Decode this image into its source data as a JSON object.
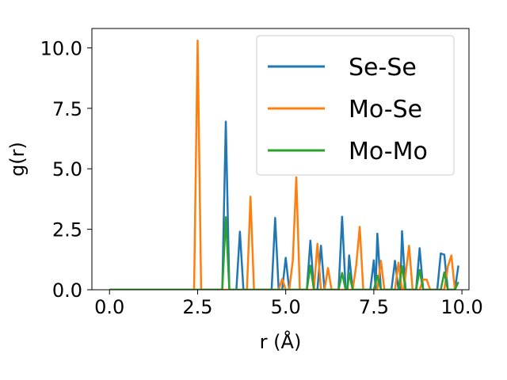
{
  "chart_data": {
    "type": "line",
    "title": "",
    "xlabel": "r (Å)",
    "ylabel": "g(r)",
    "xlim": [
      -0.5,
      10.2
    ],
    "ylim": [
      0,
      10.8
    ],
    "xticks": [
      0.0,
      2.5,
      5.0,
      7.5,
      10.0
    ],
    "yticks": [
      0.0,
      2.5,
      5.0,
      7.5,
      10.0
    ],
    "xtick_labels": [
      "0.0",
      "2.5",
      "5.0",
      "7.5",
      "10.0"
    ],
    "ytick_labels": [
      "0.0",
      "2.5",
      "5.0",
      "7.5",
      "10.0"
    ],
    "grid": false,
    "legend_position": "top-right",
    "series": [
      {
        "name": "Se-Se",
        "color": "#1f77b4",
        "points": [
          [
            0.0,
            0
          ],
          [
            3.2,
            0
          ],
          [
            3.3,
            6.95
          ],
          [
            3.4,
            0
          ],
          [
            3.6,
            0
          ],
          [
            3.7,
            2.4
          ],
          [
            3.8,
            0
          ],
          [
            4.6,
            0
          ],
          [
            4.7,
            2.97
          ],
          [
            4.8,
            0
          ],
          [
            4.9,
            0
          ],
          [
            5.0,
            1.32
          ],
          [
            5.1,
            0
          ],
          [
            5.6,
            0
          ],
          [
            5.7,
            2.03
          ],
          [
            5.8,
            0
          ],
          [
            5.9,
            0
          ],
          [
            6.0,
            1.82
          ],
          [
            6.1,
            0
          ],
          [
            6.5,
            0
          ],
          [
            6.6,
            3.02
          ],
          [
            6.7,
            0
          ],
          [
            6.75,
            0
          ],
          [
            6.8,
            1.42
          ],
          [
            6.9,
            0
          ],
          [
            7.4,
            0
          ],
          [
            7.5,
            1.22
          ],
          [
            7.55,
            0
          ],
          [
            7.6,
            2.32
          ],
          [
            7.7,
            0
          ],
          [
            8.0,
            0
          ],
          [
            8.1,
            1.2
          ],
          [
            8.2,
            0
          ],
          [
            8.25,
            0
          ],
          [
            8.3,
            2.42
          ],
          [
            8.4,
            0
          ],
          [
            8.7,
            0
          ],
          [
            8.8,
            1.72
          ],
          [
            8.9,
            0
          ],
          [
            9.3,
            0
          ],
          [
            9.4,
            1.5
          ],
          [
            9.5,
            1.45
          ],
          [
            9.6,
            0
          ],
          [
            9.8,
            0
          ],
          [
            9.9,
            1.0
          ]
        ]
      },
      {
        "name": "Mo-Se",
        "color": "#ff7f0e",
        "points": [
          [
            0.0,
            0
          ],
          [
            2.4,
            0
          ],
          [
            2.5,
            10.3
          ],
          [
            2.6,
            0
          ],
          [
            3.9,
            0
          ],
          [
            4.0,
            3.85
          ],
          [
            4.1,
            0
          ],
          [
            4.8,
            0
          ],
          [
            4.9,
            0.45
          ],
          [
            5.0,
            0
          ],
          [
            5.1,
            0
          ],
          [
            5.2,
            1.2
          ],
          [
            5.3,
            4.65
          ],
          [
            5.4,
            0
          ],
          [
            5.8,
            0
          ],
          [
            5.9,
            1.9
          ],
          [
            6.0,
            0
          ],
          [
            6.1,
            0
          ],
          [
            6.2,
            0.9
          ],
          [
            6.3,
            0
          ],
          [
            6.9,
            0
          ],
          [
            7.0,
            1.0
          ],
          [
            7.1,
            2.6
          ],
          [
            7.2,
            0
          ],
          [
            7.6,
            0
          ],
          [
            7.7,
            1.2
          ],
          [
            7.8,
            0
          ],
          [
            8.1,
            0
          ],
          [
            8.2,
            1.12
          ],
          [
            8.3,
            0
          ],
          [
            8.35,
            0
          ],
          [
            8.5,
            1.82
          ],
          [
            8.6,
            0
          ],
          [
            8.8,
            0
          ],
          [
            8.9,
            0.42
          ],
          [
            9.0,
            0.42
          ],
          [
            9.1,
            0
          ],
          [
            9.5,
            0
          ],
          [
            9.6,
            0.95
          ],
          [
            9.7,
            1.42
          ],
          [
            9.8,
            0
          ]
        ]
      },
      {
        "name": "Mo-Mo",
        "color": "#2ca02c",
        "points": [
          [
            0.0,
            0
          ],
          [
            3.2,
            0
          ],
          [
            3.3,
            3.0
          ],
          [
            3.4,
            0
          ],
          [
            5.6,
            0
          ],
          [
            5.7,
            1.0
          ],
          [
            5.8,
            0
          ],
          [
            6.5,
            0
          ],
          [
            6.6,
            0.7
          ],
          [
            6.7,
            0
          ],
          [
            6.75,
            0
          ],
          [
            6.8,
            0.7
          ],
          [
            6.9,
            0
          ],
          [
            7.5,
            0
          ],
          [
            7.6,
            0.58
          ],
          [
            7.7,
            0
          ],
          [
            8.2,
            0
          ],
          [
            8.3,
            0.98
          ],
          [
            8.4,
            0
          ],
          [
            8.7,
            0
          ],
          [
            8.8,
            0.82
          ],
          [
            8.9,
            0
          ],
          [
            9.4,
            0
          ],
          [
            9.5,
            0.72
          ],
          [
            9.6,
            0
          ],
          [
            9.8,
            0
          ],
          [
            9.9,
            0.32
          ]
        ]
      }
    ]
  }
}
